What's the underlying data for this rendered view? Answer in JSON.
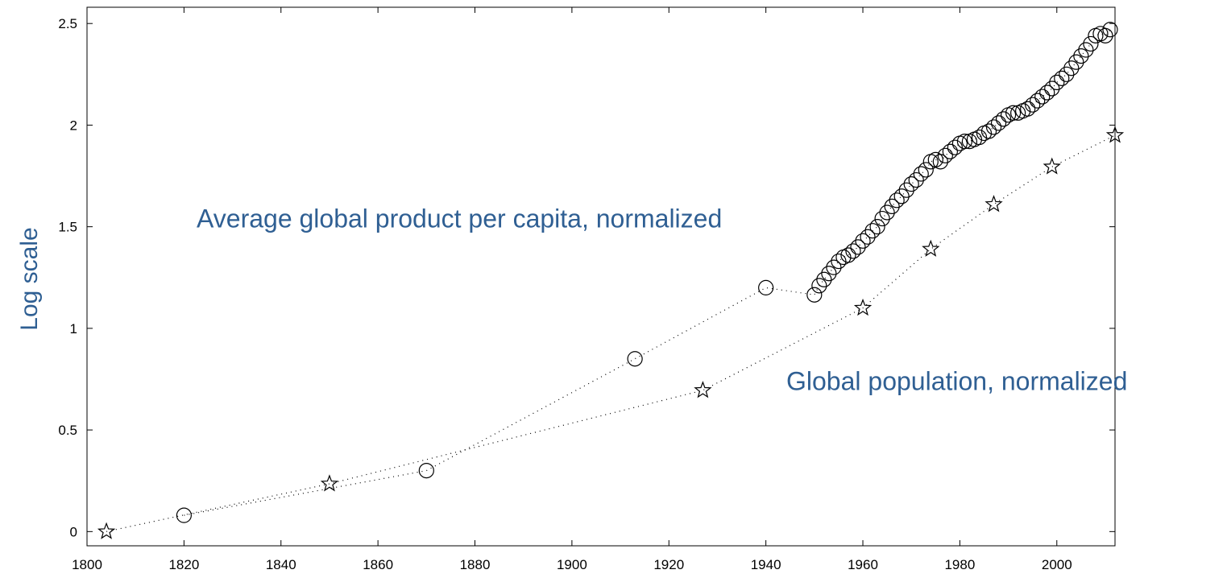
{
  "chart_data": {
    "type": "scatter",
    "title": "",
    "xlabel": "",
    "ylabel": "Log scale",
    "xlim": [
      1800,
      2012
    ],
    "ylim": [
      -0.07,
      2.58
    ],
    "grid": false,
    "x_ticks": [
      1800,
      1820,
      1840,
      1860,
      1880,
      1900,
      1920,
      1940,
      1960,
      1980,
      2000
    ],
    "x_tick_labels": [
      "1800",
      "1820",
      "1840",
      "1860",
      "1880",
      "1900",
      "1920",
      "1940",
      "1960",
      "1980",
      "2000"
    ],
    "y_ticks": [
      0,
      0.5,
      1,
      1.5,
      2,
      2.5
    ],
    "y_tick_labels": [
      "0",
      "0.5",
      "1",
      "1.5",
      "2",
      "2.5"
    ],
    "annotations": [
      {
        "text": "Average global product per capita, normalized",
        "series": "gdp"
      },
      {
        "text": "Global population, normalized",
        "series": "population"
      }
    ],
    "series": [
      {
        "id": "gdp",
        "marker": "circle",
        "line": "dotted",
        "points": [
          [
            1820,
            0.08
          ],
          [
            1870,
            0.3
          ],
          [
            1913,
            0.85
          ],
          [
            1940,
            1.2
          ],
          [
            1950,
            1.165
          ],
          [
            1951,
            1.21
          ],
          [
            1952,
            1.24
          ],
          [
            1953,
            1.27
          ],
          [
            1954,
            1.3
          ],
          [
            1955,
            1.33
          ],
          [
            1956,
            1.35
          ],
          [
            1957,
            1.36
          ],
          [
            1958,
            1.38
          ],
          [
            1959,
            1.4
          ],
          [
            1960,
            1.43
          ],
          [
            1961,
            1.45
          ],
          [
            1962,
            1.48
          ],
          [
            1963,
            1.5
          ],
          [
            1964,
            1.54
          ],
          [
            1965,
            1.57
          ],
          [
            1966,
            1.6
          ],
          [
            1967,
            1.63
          ],
          [
            1968,
            1.65
          ],
          [
            1969,
            1.68
          ],
          [
            1970,
            1.71
          ],
          [
            1971,
            1.73
          ],
          [
            1972,
            1.76
          ],
          [
            1973,
            1.78
          ],
          [
            1974,
            1.82
          ],
          [
            1975,
            1.83
          ],
          [
            1976,
            1.82
          ],
          [
            1977,
            1.85
          ],
          [
            1978,
            1.87
          ],
          [
            1979,
            1.89
          ],
          [
            1980,
            1.91
          ],
          [
            1981,
            1.92
          ],
          [
            1982,
            1.92
          ],
          [
            1983,
            1.93
          ],
          [
            1984,
            1.94
          ],
          [
            1985,
            1.96
          ],
          [
            1986,
            1.97
          ],
          [
            1987,
            1.99
          ],
          [
            1988,
            2.01
          ],
          [
            1989,
            2.03
          ],
          [
            1990,
            2.05
          ],
          [
            1991,
            2.06
          ],
          [
            1992,
            2.06
          ],
          [
            1993,
            2.07
          ],
          [
            1994,
            2.08
          ],
          [
            1995,
            2.1
          ],
          [
            1996,
            2.12
          ],
          [
            1997,
            2.14
          ],
          [
            1998,
            2.16
          ],
          [
            1999,
            2.18
          ],
          [
            2000,
            2.21
          ],
          [
            2001,
            2.23
          ],
          [
            2002,
            2.25
          ],
          [
            2003,
            2.28
          ],
          [
            2004,
            2.31
          ],
          [
            2005,
            2.34
          ],
          [
            2006,
            2.37
          ],
          [
            2007,
            2.4
          ],
          [
            2008,
            2.44
          ],
          [
            2009,
            2.45
          ],
          [
            2010,
            2.44
          ],
          [
            2011,
            2.47
          ]
        ]
      },
      {
        "id": "population",
        "marker": "star",
        "line": "dotted",
        "points": [
          [
            1804,
            0.0
          ],
          [
            1850,
            0.235
          ],
          [
            1927,
            0.695
          ],
          [
            1960,
            1.1
          ],
          [
            1974,
            1.39
          ],
          [
            1987,
            1.61
          ],
          [
            1999,
            1.795
          ],
          [
            2012,
            1.95
          ]
        ]
      }
    ],
    "colors": {
      "annotation": "#2f5f93",
      "ylabel": "#2f5f93",
      "marker": "#000000",
      "axis": "#000000",
      "background": "#ffffff"
    }
  }
}
